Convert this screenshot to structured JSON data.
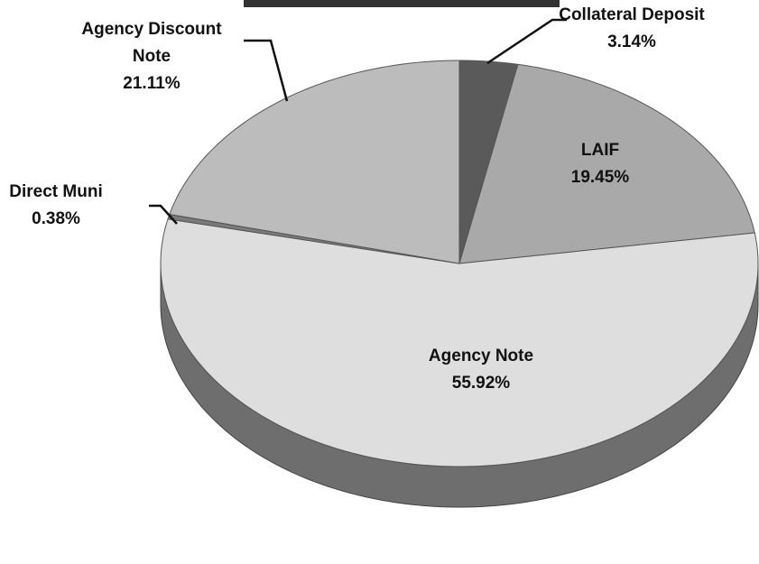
{
  "chart_data": {
    "type": "pie",
    "categories": [
      "Collateral Deposit",
      "LAIF",
      "Agency Note",
      "Direct Muni",
      "Agency Discount Note"
    ],
    "values": [
      3.14,
      19.45,
      55.92,
      0.38,
      21.11
    ],
    "value_labels": [
      "3.14%",
      "19.45%",
      "55.92%",
      "0.38%",
      "21.11%"
    ],
    "colors": [
      "#5a5a5a",
      "#a9a9a9",
      "#dedede",
      "#7a7a7a",
      "#bcbcbc"
    ]
  }
}
